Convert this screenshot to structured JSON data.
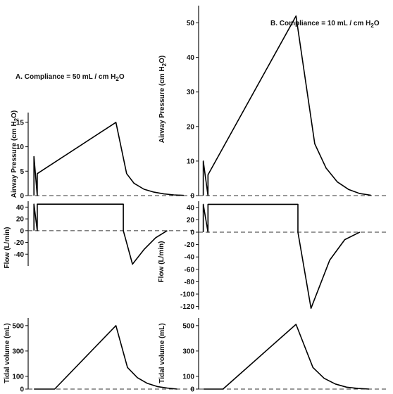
{
  "panels": {
    "A": {
      "title": "A. Compliance = 50 mL / cm H2O"
    },
    "B": {
      "title": "B. Compliance = 10 mL / cm H2O"
    }
  },
  "chart_data": [
    {
      "id": "A-pressure",
      "type": "line",
      "panel": "A",
      "ylabel": "Airway Pressure (cm H2O)",
      "yticks": [
        0,
        5,
        10,
        15
      ],
      "ylim": [
        0,
        17
      ],
      "xlim": [
        0,
        10
      ],
      "baseline": 0,
      "series": [
        {
          "x": [
            0.35,
            0.35,
            0.55,
            0.55,
            5.3,
            5.95,
            6.4,
            7.0,
            7.6,
            8.2,
            8.8,
            9.4
          ],
          "y": [
            0,
            8,
            0,
            4.5,
            15,
            4.5,
            2.5,
            1.3,
            0.7,
            0.35,
            0.15,
            0.05
          ]
        }
      ]
    },
    {
      "id": "A-flow",
      "type": "line",
      "panel": "A",
      "ylabel": "Flow (L/min)",
      "yticks": [
        40,
        20,
        0,
        -20,
        -40
      ],
      "ylim": [
        -60,
        50
      ],
      "xlim": [
        0,
        10
      ],
      "baseline": 0,
      "series": [
        {
          "x": [
            0.35,
            0.35,
            0.55,
            0.55,
            5.75,
            5.75,
            6.3,
            7.0,
            7.7,
            8.4
          ],
          "y": [
            0,
            45,
            0,
            45,
            45,
            0,
            -57,
            -32,
            -12,
            0
          ]
        }
      ]
    },
    {
      "id": "A-volume",
      "type": "line",
      "panel": "A",
      "ylabel": "Tidal volume (mL)",
      "yticks": [
        0,
        100,
        300,
        500
      ],
      "ylim": [
        0,
        560
      ],
      "xlim": [
        0,
        10
      ],
      "baseline": 0,
      "series": [
        {
          "x": [
            0.35,
            1.6,
            5.3,
            6.0,
            6.6,
            7.2,
            7.8,
            8.4,
            9.0
          ],
          "y": [
            0,
            0,
            500,
            170,
            90,
            45,
            20,
            8,
            0
          ]
        }
      ]
    },
    {
      "id": "B-pressure",
      "type": "line",
      "panel": "B",
      "ylabel": "Airway Pressure (cm H2O)",
      "yticks": [
        0,
        10,
        20,
        30,
        40,
        50
      ],
      "ylim": [
        0,
        55
      ],
      "xlim": [
        0,
        10
      ],
      "baseline": 0,
      "series": [
        {
          "x": [
            0.25,
            0.25,
            0.5,
            0.5,
            5.2,
            6.2,
            6.8,
            7.4,
            8.0,
            8.6,
            9.2
          ],
          "y": [
            0,
            10,
            0,
            6,
            52,
            15,
            8,
            4,
            1.8,
            0.6,
            0.1
          ]
        }
      ]
    },
    {
      "id": "B-flow",
      "type": "line",
      "panel": "B",
      "ylabel": "Flow (L/min)",
      "yticks": [
        40,
        20,
        0,
        -20,
        -40,
        -60,
        -80,
        -100,
        -120
      ],
      "ylim": [
        -125,
        50
      ],
      "xlim": [
        0,
        10
      ],
      "baseline": 0,
      "series": [
        {
          "x": [
            0.25,
            0.25,
            0.5,
            0.5,
            5.3,
            5.3,
            6.0,
            7.0,
            7.8,
            8.6
          ],
          "y": [
            0,
            45,
            0,
            45,
            45,
            0,
            -123,
            -45,
            -12,
            0
          ]
        }
      ]
    },
    {
      "id": "B-volume",
      "type": "line",
      "panel": "B",
      "ylabel": "Tidal volume (mL)",
      "yticks": [
        0,
        100,
        300,
        500
      ],
      "ylim": [
        0,
        560
      ],
      "xlim": [
        0,
        10
      ],
      "baseline": 0,
      "series": [
        {
          "x": [
            0.25,
            1.3,
            5.2,
            6.1,
            6.7,
            7.3,
            7.9,
            8.5,
            9.1
          ],
          "y": [
            0,
            0,
            510,
            170,
            85,
            40,
            15,
            5,
            0
          ]
        }
      ]
    }
  ]
}
